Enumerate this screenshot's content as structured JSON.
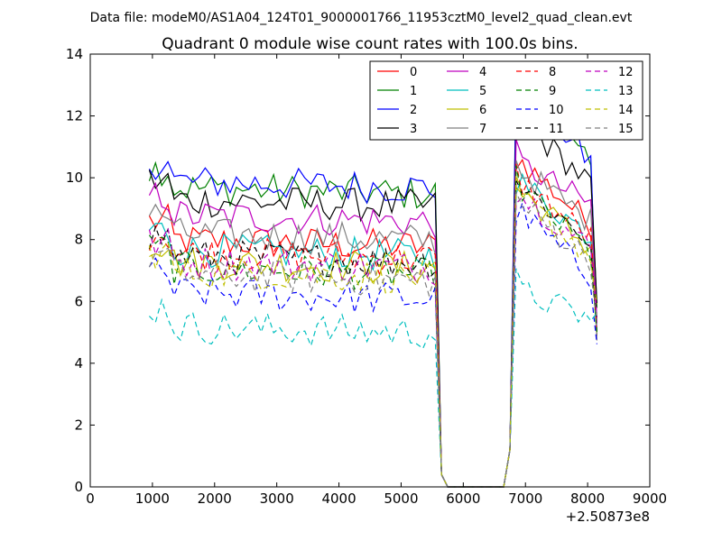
{
  "chart_data": {
    "type": "line",
    "suptitle": "Data file: modeM0/AS1A04_124T01_9000001766_11953cztM0_level2_quad_clean.evt",
    "title": "Quadrant 0 module wise count rates with 100.0s bins.",
    "xlabel": "",
    "ylabel": "",
    "x_offset_label": "+2.50873e8",
    "xlim": [
      0,
      9000
    ],
    "ylim": [
      0,
      14
    ],
    "xticks": [
      0,
      1000,
      2000,
      3000,
      4000,
      5000,
      6000,
      7000,
      8000,
      9000
    ],
    "yticks": [
      0,
      2,
      4,
      6,
      8,
      10,
      12,
      14
    ],
    "grid": false,
    "legend_position": "top-right",
    "legend_columns": 4,
    "series": [
      {
        "name": "0",
        "color": "#ff0000",
        "dash": "solid",
        "base": 8.0,
        "gap": 10.5
      },
      {
        "name": "1",
        "color": "#008000",
        "dash": "solid",
        "base": 9.7,
        "gap": 12.8
      },
      {
        "name": "2",
        "color": "#0000ff",
        "dash": "solid",
        "base": 9.9,
        "gap": 12.9
      },
      {
        "name": "3",
        "color": "#000000",
        "dash": "solid",
        "base": 9.3,
        "gap": 11.8
      },
      {
        "name": "4",
        "color": "#bf00bf",
        "dash": "solid",
        "base": 8.8,
        "gap": 10.4
      },
      {
        "name": "5",
        "color": "#00bfbf",
        "dash": "solid",
        "base": 7.7,
        "gap": 9.8
      },
      {
        "name": "6",
        "color": "#bfbf00",
        "dash": "solid",
        "base": 7.3,
        "gap": 9.5
      },
      {
        "name": "7",
        "color": "#808080",
        "dash": "solid",
        "base": 8.2,
        "gap": 10.2
      },
      {
        "name": "8",
        "color": "#ff0000",
        "dash": "dashed",
        "base": 7.6,
        "gap": 9.8
      },
      {
        "name": "9",
        "color": "#008000",
        "dash": "dashed",
        "base": 7.1,
        "gap": 9.6
      },
      {
        "name": "10",
        "color": "#0000ff",
        "dash": "dashed",
        "base": 6.3,
        "gap": 8.8
      },
      {
        "name": "11",
        "color": "#000000",
        "dash": "dashed",
        "base": 7.5,
        "gap": 9.7
      },
      {
        "name": "12",
        "color": "#bf00bf",
        "dash": "dashed",
        "base": 7.3,
        "gap": 9.4
      },
      {
        "name": "13",
        "color": "#00bfbf",
        "dash": "dashed",
        "base": 5.2,
        "gap": 6.3
      },
      {
        "name": "14",
        "color": "#bfbf00",
        "dash": "dashed",
        "base": 7.0,
        "gap": 9.3
      },
      {
        "name": "15",
        "color": "#808080",
        "dash": "dashed",
        "base": 6.9,
        "gap": 9.1
      }
    ]
  }
}
